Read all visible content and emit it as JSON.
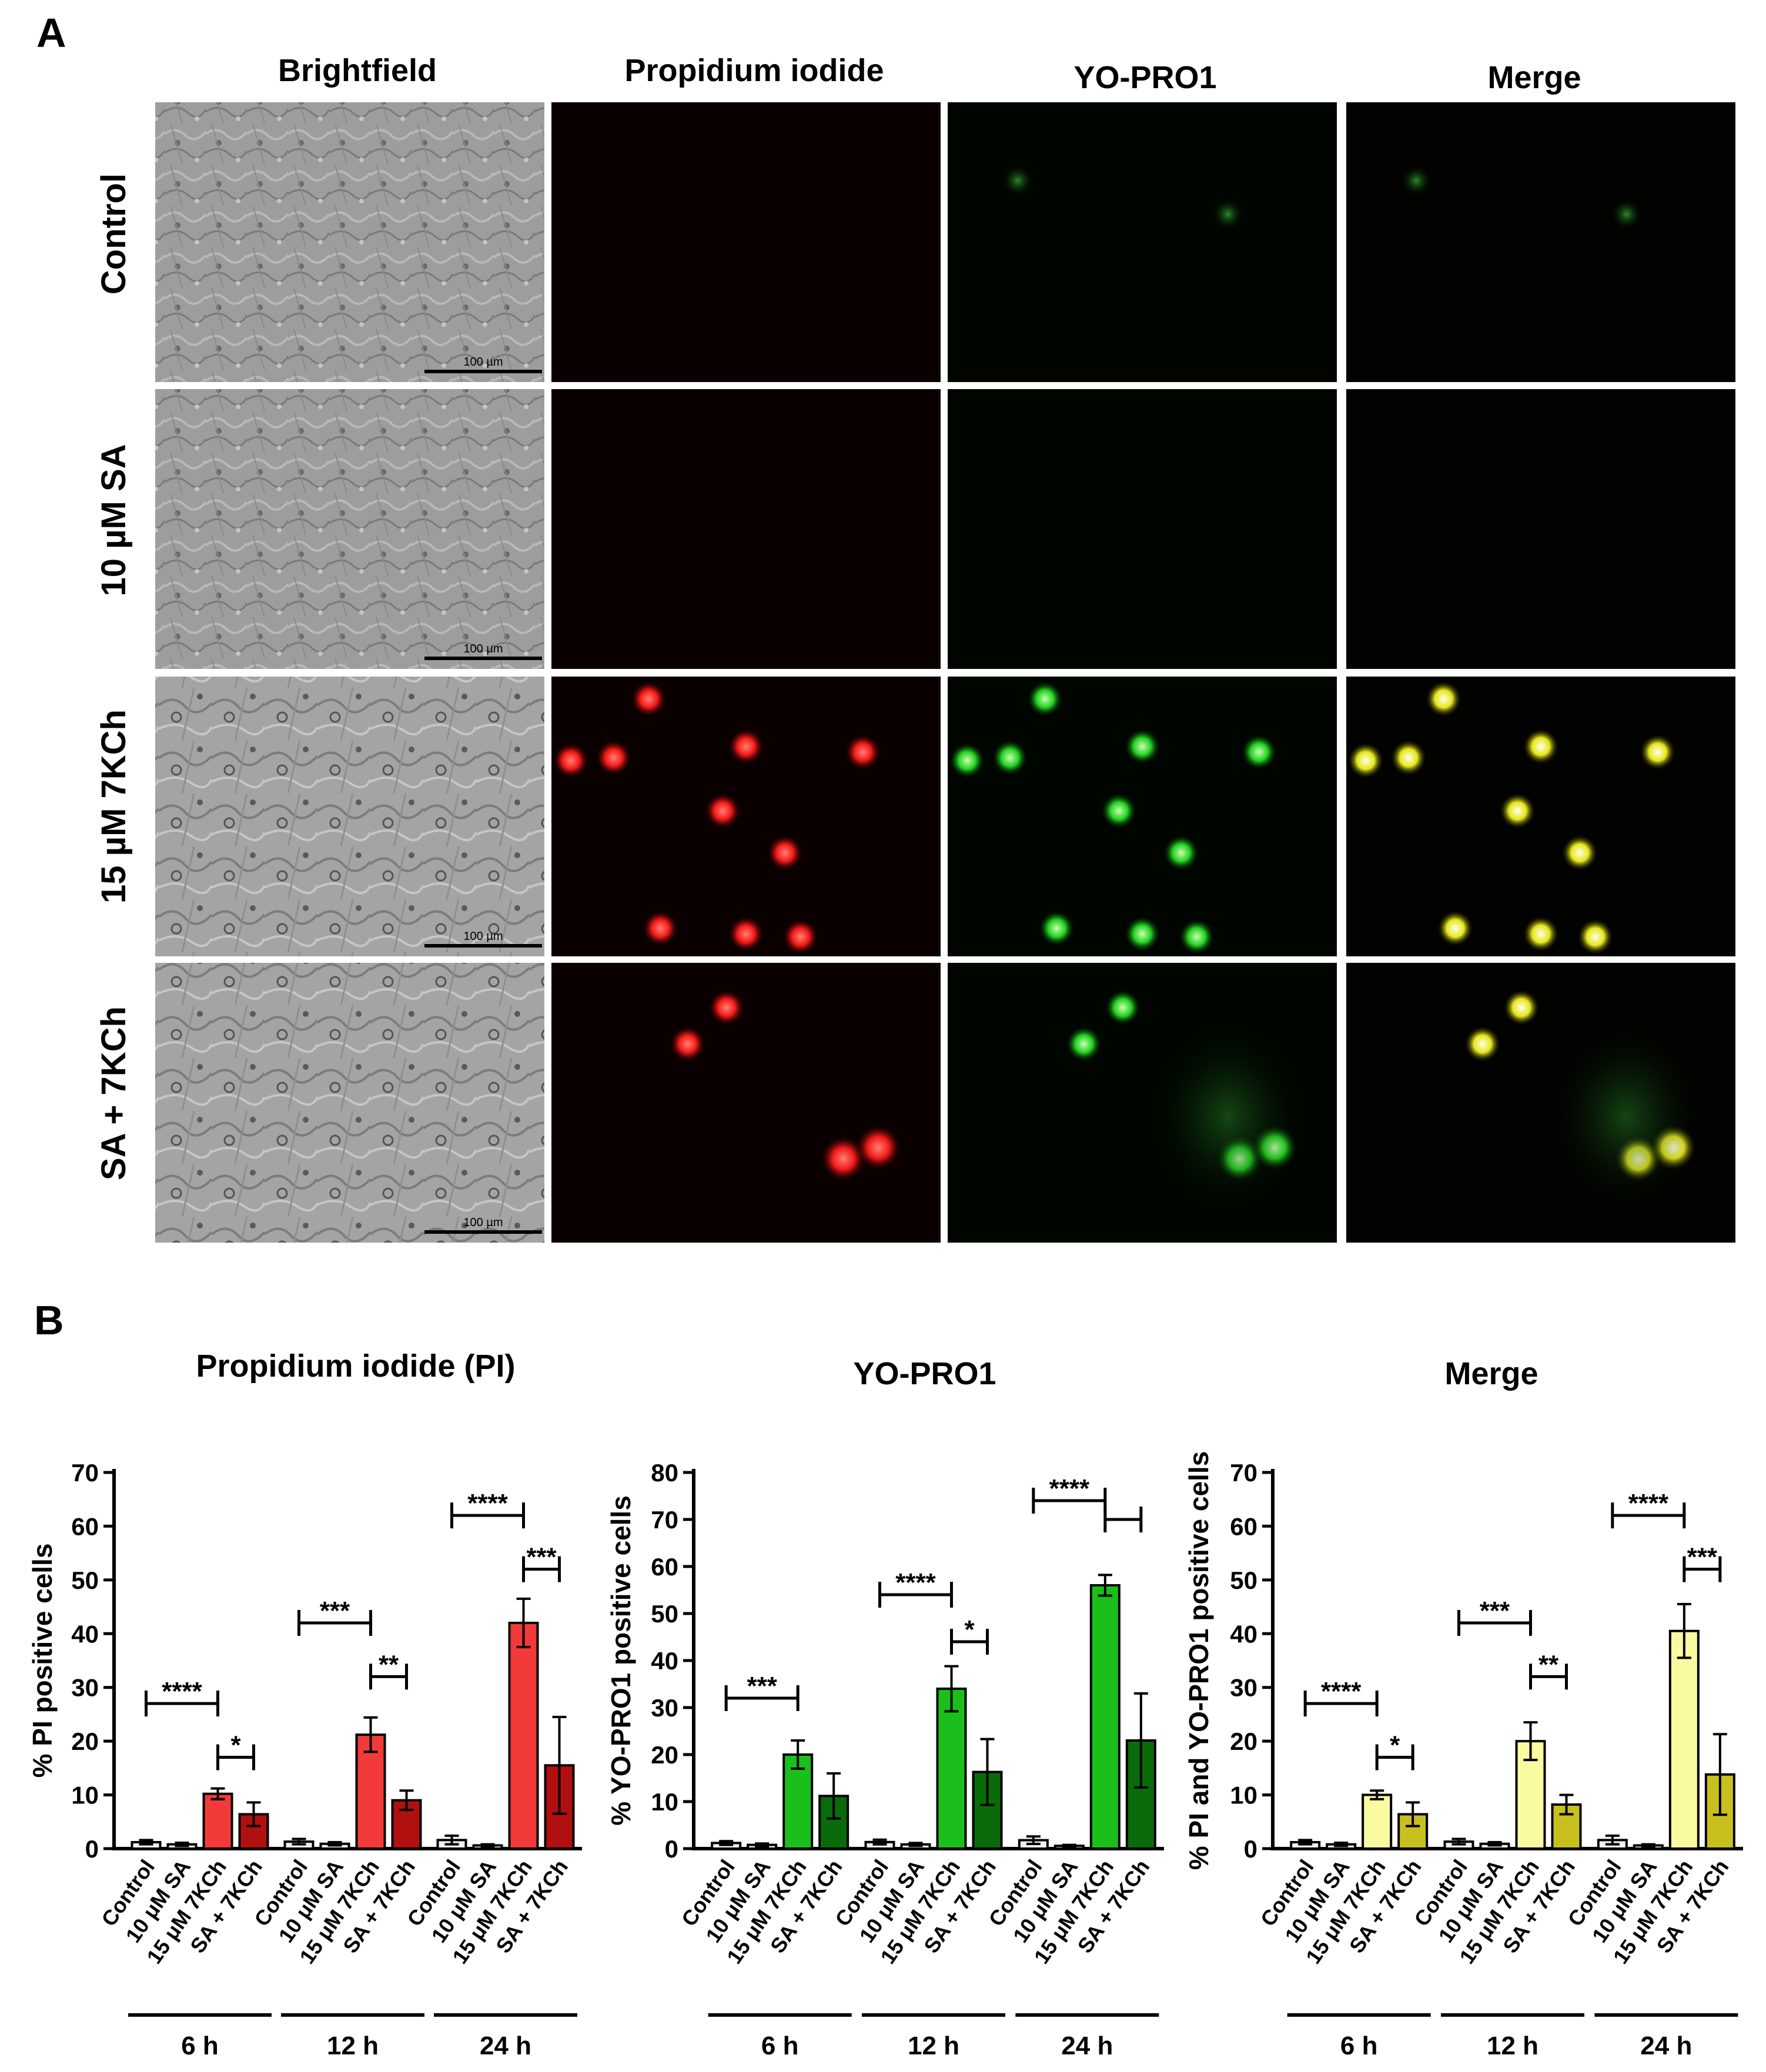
{
  "panel_a": {
    "letter": "A",
    "columns": [
      {
        "label": "Brightfield",
        "color": "#000000"
      },
      {
        "label": "Propidium iodide",
        "color": "#e8141c"
      },
      {
        "label": "YO-PRO1",
        "color": "#19c21d"
      },
      {
        "label": "Merge",
        "color": "#a8d41c"
      }
    ],
    "rows": [
      "Control",
      "10 µM SA",
      "15 µM 7KCh",
      "SA + 7KCh"
    ],
    "scale_bar": "100 µm"
  },
  "panel_b": {
    "letter": "B",
    "group_labels": [
      "6 h",
      "12 h",
      "24 h"
    ],
    "category_labels": [
      "Control",
      "10 μM SA",
      "15 μM 7KCh",
      "SA + 7KCh"
    ]
  },
  "chart_data": [
    {
      "type": "bar",
      "title": "Propidium iodide (PI)",
      "ylabel": "% PI positive cells",
      "ylim": [
        0,
        70
      ],
      "yticks": [
        0,
        10,
        20,
        30,
        40,
        50,
        60,
        70
      ],
      "groups": [
        "6 h",
        "12 h",
        "24 h"
      ],
      "categories": [
        "Control",
        "10 μM SA",
        "15 μM 7KCh",
        "SA + 7KCh"
      ],
      "colors": [
        "#f0f0f0",
        "#f0f0f0",
        "#f23a3a",
        "#b01010"
      ],
      "values": [
        [
          1.2,
          0.8,
          10.2,
          6.4
        ],
        [
          1.3,
          0.9,
          21.2,
          9.0
        ],
        [
          1.6,
          0.6,
          42.0,
          15.5
        ]
      ],
      "errors": [
        [
          0.4,
          0.3,
          1.0,
          2.2
        ],
        [
          0.5,
          0.3,
          3.2,
          1.8
        ],
        [
          0.8,
          0.2,
          4.5,
          9.0
        ]
      ],
      "significance": [
        {
          "group": 0,
          "label": "****",
          "low": "Control",
          "high": "15 μM 7KCh",
          "y": 27
        },
        {
          "group": 0,
          "label": "*",
          "low": "15 μM 7KCh",
          "high": "SA + 7KCh",
          "y": 17
        },
        {
          "group": 1,
          "label": "***",
          "low": "Control",
          "high": "15 μM 7KCh",
          "y": 42
        },
        {
          "group": 1,
          "label": "**",
          "low": "15 μM 7KCh",
          "high": "SA + 7KCh",
          "y": 32
        },
        {
          "group": 2,
          "label": "****",
          "low": "Control",
          "high": "15 μM 7KCh",
          "y": 62
        },
        {
          "group": 2,
          "label": "***",
          "low": "15 μM 7KCh",
          "high": "SA + 7KCh",
          "y": 52
        }
      ]
    },
    {
      "type": "bar",
      "title": "YO-PRO1",
      "ylabel": "% YO-PRO1 positive cells",
      "ylim": [
        0,
        80
      ],
      "yticks": [
        0,
        10,
        20,
        30,
        40,
        50,
        60,
        70,
        80
      ],
      "groups": [
        "6 h",
        "12 h",
        "24 h"
      ],
      "categories": [
        "Control",
        "10 μM SA",
        "15 μM 7KCh",
        "SA + 7KCh"
      ],
      "colors": [
        "#f0f0f0",
        "#f0f0f0",
        "#1bbf1b",
        "#0a6b0a"
      ],
      "values": [
        [
          1.2,
          0.8,
          20.0,
          11.2
        ],
        [
          1.4,
          0.9,
          34.0,
          16.3
        ],
        [
          1.8,
          0.6,
          56.0,
          23.0
        ]
      ],
      "errors": [
        [
          0.4,
          0.3,
          3.0,
          4.8
        ],
        [
          0.5,
          0.3,
          4.8,
          7.0
        ],
        [
          0.8,
          0.2,
          2.2,
          10.0
        ]
      ],
      "significance": [
        {
          "group": 0,
          "label": "***",
          "low": "Control",
          "high": "15 μM 7KCh",
          "y": 32
        },
        {
          "group": 1,
          "label": "****",
          "low": "Control",
          "high": "15 μM 7KCh",
          "y": 54
        },
        {
          "group": 1,
          "label": "*",
          "low": "15 μM 7KCh",
          "high": "SA + 7KCh",
          "y": 44
        },
        {
          "group": 2,
          "label": "****",
          "low": "Control",
          "high": "15 μM 7KCh",
          "y": 74
        },
        {
          "group": 2,
          "label": "",
          "low": "15 μM 7KCh",
          "high": "SA + 7KCh",
          "y": 70
        }
      ]
    },
    {
      "type": "bar",
      "title": "Merge",
      "ylabel": "% PI and YO-PRO1 positive cells",
      "ylim": [
        0,
        70
      ],
      "yticks": [
        0,
        10,
        20,
        30,
        40,
        50,
        60,
        70
      ],
      "groups": [
        "6 h",
        "12 h",
        "24 h"
      ],
      "categories": [
        "Control",
        "10 μM SA",
        "15 μM 7KCh",
        "SA + 7KCh"
      ],
      "colors": [
        "#f0f0f0",
        "#f0f0f0",
        "#fafaa0",
        "#c8c01e"
      ],
      "values": [
        [
          1.2,
          0.8,
          10.0,
          6.4
        ],
        [
          1.3,
          0.9,
          20.0,
          8.2
        ],
        [
          1.6,
          0.6,
          40.5,
          13.8
        ]
      ],
      "errors": [
        [
          0.4,
          0.3,
          0.8,
          2.2
        ],
        [
          0.5,
          0.3,
          3.5,
          1.8
        ],
        [
          0.8,
          0.2,
          5.0,
          7.5
        ]
      ],
      "significance": [
        {
          "group": 0,
          "label": "****",
          "low": "Control",
          "high": "15 μM 7KCh",
          "y": 27
        },
        {
          "group": 0,
          "label": "*",
          "low": "15 μM 7KCh",
          "high": "SA + 7KCh",
          "y": 17
        },
        {
          "group": 1,
          "label": "***",
          "low": "Control",
          "high": "15 μM 7KCh",
          "y": 42
        },
        {
          "group": 1,
          "label": "**",
          "low": "15 μM 7KCh",
          "high": "SA + 7KCh",
          "y": 32
        },
        {
          "group": 2,
          "label": "****",
          "low": "Control",
          "high": "15 μM 7KCh",
          "y": 62
        },
        {
          "group": 2,
          "label": "***",
          "low": "15 μM 7KCh",
          "high": "SA + 7KCh",
          "y": 52
        }
      ]
    }
  ]
}
